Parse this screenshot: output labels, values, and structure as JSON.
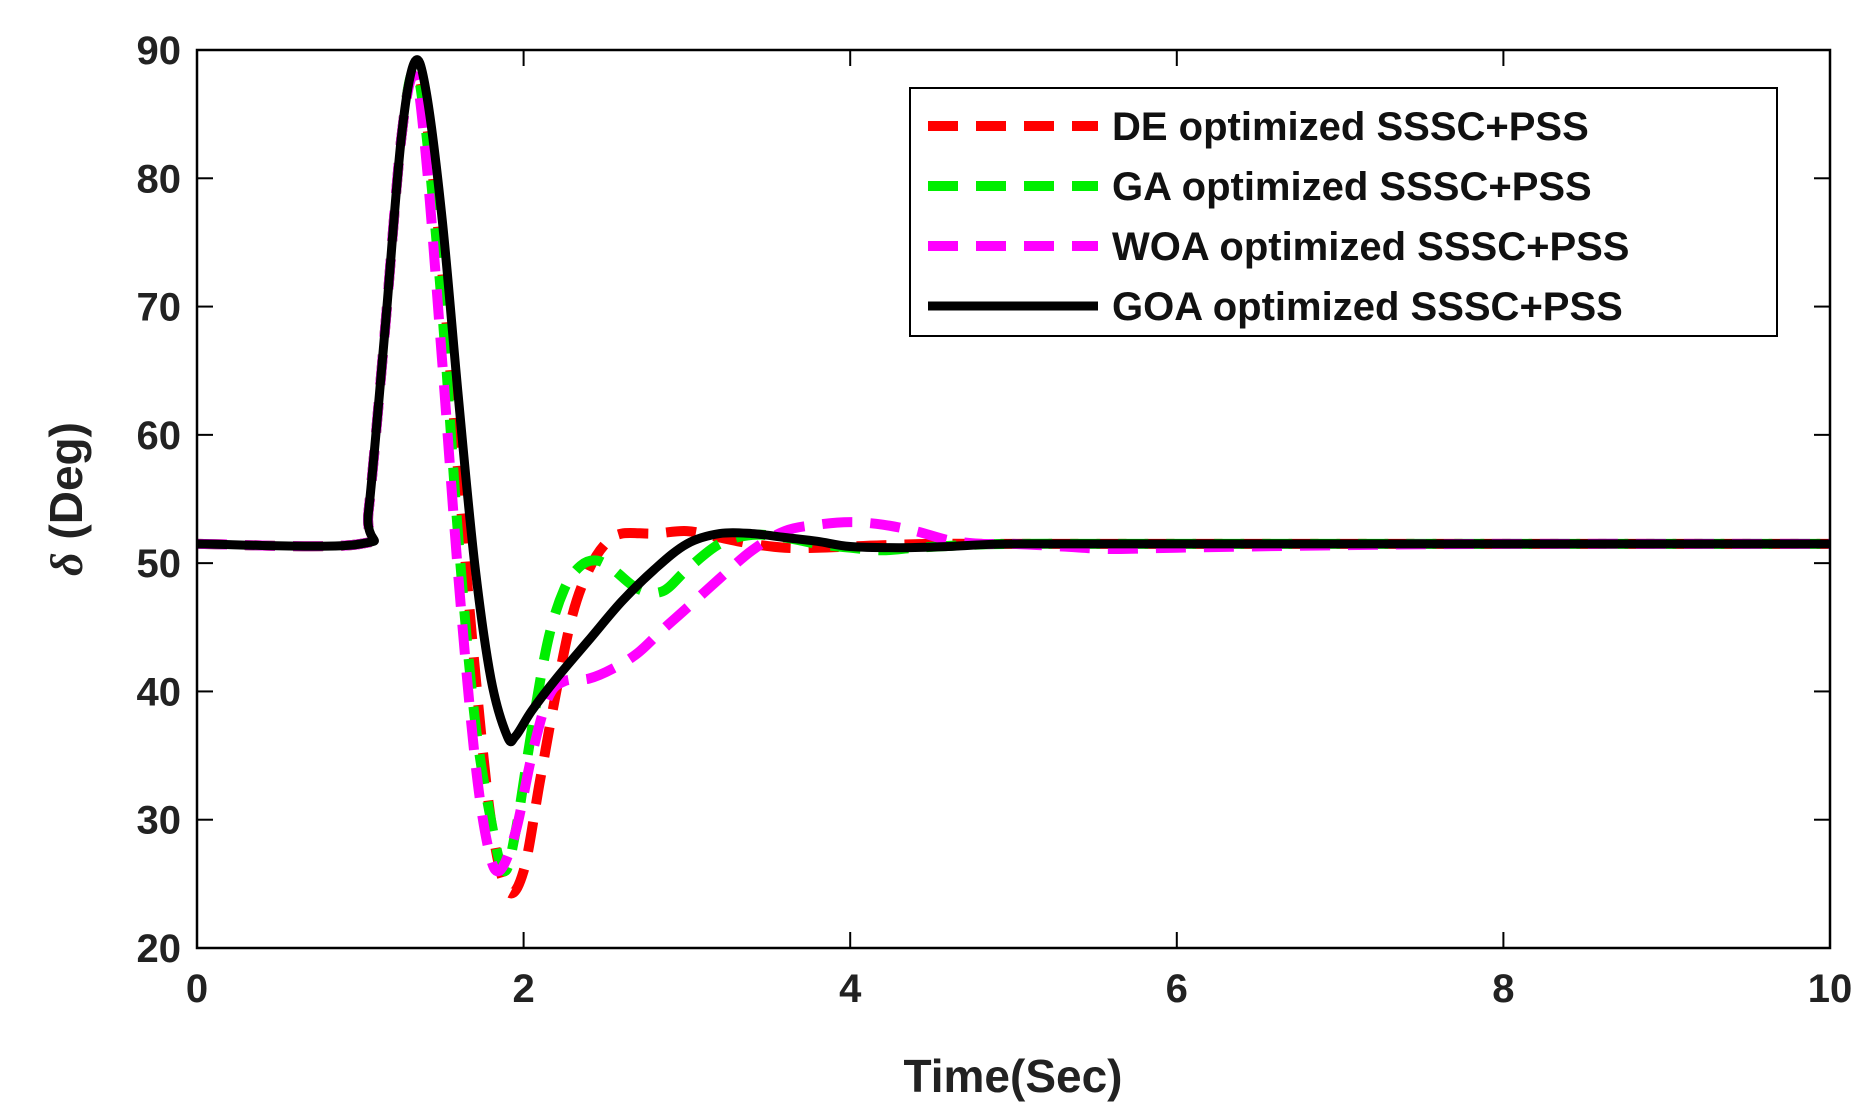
{
  "chart_data": {
    "type": "line",
    "title": "",
    "xlabel": "Time(Sec)",
    "ylabel_symbol": "δ",
    "ylabel_text": " (Deg)",
    "xlim": [
      0,
      10
    ],
    "ylim": [
      20,
      90
    ],
    "xticks": [
      0,
      2,
      4,
      6,
      8,
      10
    ],
    "yticks": [
      20,
      30,
      40,
      50,
      60,
      70,
      80,
      90
    ],
    "grid": false,
    "legend_position": "top-right",
    "series": [
      {
        "name": "DE optimized SSSC+PSS",
        "color": "#ff0000",
        "style": "dashed",
        "x": [
          0,
          1.0,
          1.05,
          1.15,
          1.25,
          1.33,
          1.4,
          1.5,
          1.6,
          1.7,
          1.8,
          1.9,
          2.0,
          2.1,
          2.2,
          2.3,
          2.4,
          2.5,
          2.6,
          2.8,
          3.0,
          3.2,
          3.4,
          3.6,
          3.8,
          4.0,
          4.2,
          4.5,
          5.0,
          6.0,
          7.0,
          8.0,
          10.0
        ],
        "y": [
          51.5,
          51.5,
          54,
          68,
          83,
          88.5,
          85,
          73,
          57,
          42,
          30,
          24.5,
          26,
          33,
          40,
          46,
          49.5,
          51.5,
          52.3,
          52.3,
          52.5,
          52.0,
          51.5,
          51.2,
          51.2,
          51.3,
          51.4,
          51.5,
          51.5,
          51.5,
          51.5,
          51.5,
          51.5
        ]
      },
      {
        "name": "GA optimized SSSC+PSS",
        "color": "#00ee00",
        "style": "dashed",
        "x": [
          0,
          1.0,
          1.05,
          1.15,
          1.25,
          1.33,
          1.4,
          1.5,
          1.6,
          1.7,
          1.8,
          1.88,
          1.95,
          2.05,
          2.15,
          2.25,
          2.35,
          2.45,
          2.55,
          2.7,
          2.85,
          3.0,
          3.2,
          3.4,
          3.6,
          3.8,
          4.0,
          4.2,
          4.4,
          4.7,
          5.0,
          6.0,
          8.0,
          10.0
        ],
        "y": [
          51.5,
          51.5,
          54,
          68,
          83,
          88.5,
          84,
          70,
          52,
          38,
          30,
          26,
          29,
          37,
          44,
          48,
          49.8,
          50.2,
          49.5,
          48,
          47.8,
          49.5,
          51.5,
          52.2,
          52.0,
          51.5,
          51.2,
          51.0,
          51.2,
          51.4,
          51.5,
          51.5,
          51.5,
          51.5
        ]
      },
      {
        "name": "WOA optimized SSSC+PSS",
        "color": "#ff00ff",
        "style": "dashed",
        "x": [
          0,
          1.0,
          1.05,
          1.15,
          1.25,
          1.33,
          1.4,
          1.5,
          1.6,
          1.7,
          1.78,
          1.85,
          1.95,
          2.05,
          2.15,
          2.25,
          2.4,
          2.55,
          2.7,
          2.85,
          3.0,
          3.2,
          3.4,
          3.6,
          3.8,
          4.0,
          4.2,
          4.4,
          4.6,
          4.8,
          5.0,
          5.3,
          5.6,
          6.0,
          7.0,
          8.0,
          10.0
        ],
        "y": [
          51.5,
          51.5,
          54,
          68,
          83,
          88,
          82,
          66,
          49,
          35,
          28,
          26,
          29,
          35,
          39.5,
          40.8,
          41,
          41.8,
          43,
          44.8,
          46.5,
          48.8,
          51,
          52.5,
          53.0,
          53.2,
          53.0,
          52.5,
          51.8,
          51.5,
          51.5,
          51.3,
          51.1,
          51.2,
          51.4,
          51.5,
          51.5
        ]
      },
      {
        "name": "GOA optimized SSSC+PSS",
        "color": "#000000",
        "style": "solid",
        "x": [
          0,
          1.0,
          1.05,
          1.15,
          1.25,
          1.33,
          1.4,
          1.5,
          1.6,
          1.7,
          1.8,
          1.9,
          1.95,
          2.05,
          2.2,
          2.4,
          2.6,
          2.8,
          3.0,
          3.2,
          3.4,
          3.6,
          3.8,
          4.0,
          4.3,
          4.6,
          5.0,
          6.0,
          8.0,
          10.0
        ],
        "y": [
          51.5,
          51.5,
          54,
          68,
          83,
          89,
          87,
          77,
          63,
          50,
          41,
          36.5,
          36.5,
          38.5,
          41,
          44,
          47,
          49.5,
          51.5,
          52.3,
          52.3,
          52.0,
          51.7,
          51.3,
          51.2,
          51.3,
          51.5,
          51.5,
          51.5,
          51.5
        ]
      }
    ]
  }
}
